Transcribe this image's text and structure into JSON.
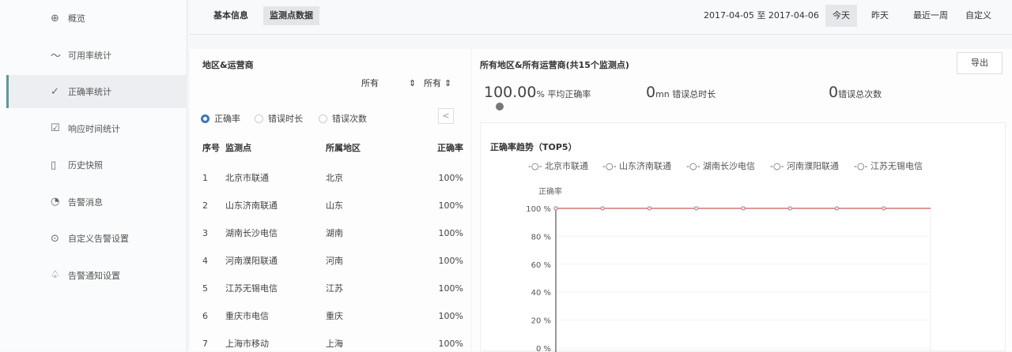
{
  "sidebar": {
    "items": [
      {
        "label": "概览",
        "icon": "globe-icon"
      },
      {
        "label": "可用率统计",
        "icon": "trend-icon"
      },
      {
        "label": "正确率统计",
        "icon": "check-icon",
        "active": true
      },
      {
        "label": "响应时间统计",
        "icon": "edit-icon"
      },
      {
        "label": "历史快照",
        "icon": "document-icon"
      },
      {
        "label": "告警消息",
        "icon": "message-icon"
      },
      {
        "label": "自定义告警设置",
        "icon": "location-icon"
      },
      {
        "label": "告警通知设置",
        "icon": "bell-icon"
      }
    ]
  },
  "tabs": [
    {
      "label": "基本信息"
    },
    {
      "label": "监测点数据",
      "active": true
    }
  ],
  "date_range": "2017-04-05 至 2017-04-06",
  "range_buttons": [
    {
      "label": "今天",
      "active": true
    },
    {
      "label": "昨天"
    },
    {
      "label": "最近一周"
    },
    {
      "label": "自定义"
    }
  ],
  "left": {
    "title": "地区&运营商",
    "select_region": "所有",
    "select_isp": "所有",
    "radios": [
      {
        "label": "正确率",
        "checked": true
      },
      {
        "label": "错误时长"
      },
      {
        "label": "错误次数"
      }
    ],
    "columns": [
      "序号",
      "监测点",
      "所属地区",
      "正确率"
    ],
    "rows": [
      [
        "1",
        "北京市联通",
        "北京",
        "100%"
      ],
      [
        "2",
        "山东济南联通",
        "山东",
        "100%"
      ],
      [
        "3",
        "湖南长沙电信",
        "湖南",
        "100%"
      ],
      [
        "4",
        "河南濮阳联通",
        "河南",
        "100%"
      ],
      [
        "5",
        "江苏无锡电信",
        "江苏",
        "100%"
      ],
      [
        "6",
        "重庆市电信",
        "重庆",
        "100%"
      ],
      [
        "7",
        "上海市移动",
        "上海",
        "100%"
      ]
    ]
  },
  "right": {
    "title": "所有地区&所有运营商(共15个监测点)",
    "export": "导出",
    "stats": [
      {
        "value": "100.00",
        "unit": "%",
        "label": "平均正确率"
      },
      {
        "value": "0",
        "unit": "mn",
        "label": "错误总时长"
      },
      {
        "value": "0",
        "unit": "",
        "label": "错误总次数"
      }
    ]
  },
  "chart_data": {
    "type": "line",
    "title": "正确率趋势（TOP5）",
    "ylabel": "正确率",
    "ylim": [
      0,
      100
    ],
    "yticks": [
      "100 %",
      "80 %",
      "60 %",
      "40 %",
      "20 %",
      "0 %"
    ],
    "line_color": "#d98a8a",
    "series": [
      {
        "name": "北京市联通",
        "values": [
          100,
          100,
          100,
          100,
          100,
          100,
          100,
          100
        ]
      },
      {
        "name": "山东济南联通",
        "values": [
          100,
          100,
          100,
          100,
          100,
          100,
          100,
          100
        ]
      },
      {
        "name": "湖南长沙电信",
        "values": [
          100,
          100,
          100,
          100,
          100,
          100,
          100,
          100
        ]
      },
      {
        "name": "河南濮阳联通",
        "values": [
          100,
          100,
          100,
          100,
          100,
          100,
          100,
          100
        ]
      },
      {
        "name": "江苏无锡电信",
        "values": [
          100,
          100,
          100,
          100,
          100,
          100,
          100,
          100
        ]
      }
    ]
  }
}
